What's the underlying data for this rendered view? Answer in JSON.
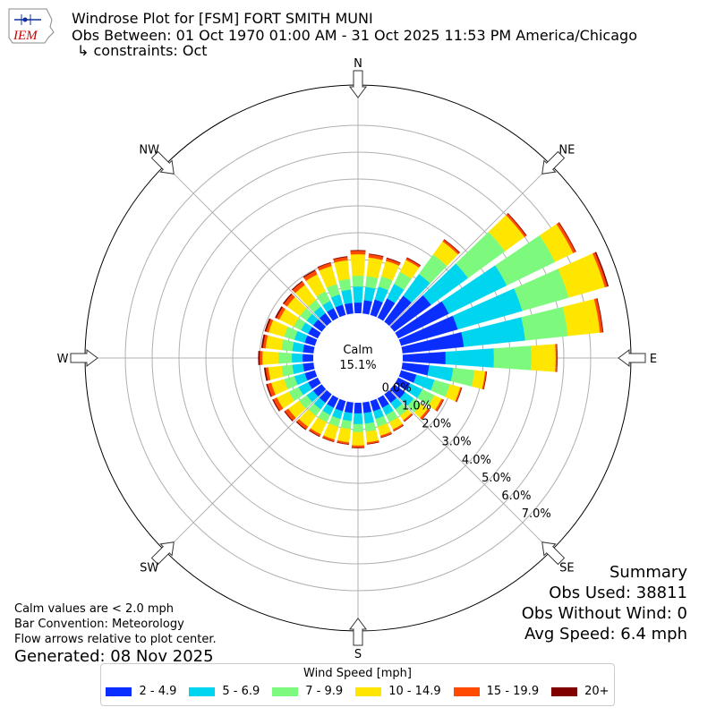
{
  "header": {
    "title": "Windrose Plot for [FSM] FORT SMITH MUNI",
    "obs_between": "Obs Between: 01 Oct 1970 01:00 AM - 31 Oct 2025 11:53 PM America/Chicago",
    "constraints": "↳ constraints: Oct"
  },
  "logo": {
    "text": "IEM",
    "color": "#cc0000"
  },
  "notes": {
    "calm_note": "Calm values are < 2.0 mph",
    "bar_convention": "Bar Convention: Meteorology",
    "flow_arrows": "Flow arrows relative to plot center.",
    "generated": "Generated: 08 Nov 2025"
  },
  "summary": {
    "heading": "Summary",
    "obs_used": "Obs Used: 38811",
    "obs_without_wind": "Obs Without Wind: 0",
    "avg_speed": "Avg Speed: 6.4 mph"
  },
  "legend": {
    "title": "Wind Speed [mph]",
    "items": [
      {
        "label": "2 - 4.9",
        "color": "#0a2eff"
      },
      {
        "label": "5 - 6.9",
        "color": "#00d5f0"
      },
      {
        "label": "7 - 9.9",
        "color": "#7dfa7d"
      },
      {
        "label": "10 - 14.9",
        "color": "#ffe600"
      },
      {
        "label": "15 - 19.9",
        "color": "#ff4a00"
      },
      {
        "label": "20+",
        "color": "#800000"
      }
    ]
  },
  "chart_data": {
    "type": "windrose",
    "calm_label": "Calm",
    "calm_percent": "15.1%",
    "calm_value": 15.1,
    "radial_ticks": [
      "0.0%",
      "1.0%",
      "2.0%",
      "3.0%",
      "4.0%",
      "5.0%",
      "6.0%",
      "7.0%"
    ],
    "cardinal_labels": [
      {
        "label": "N",
        "dir": 0
      },
      {
        "label": "NE",
        "dir": 45
      },
      {
        "label": "E",
        "dir": 90
      },
      {
        "label": "SE",
        "dir": 135
      },
      {
        "label": "S",
        "dir": 180
      },
      {
        "label": "SW",
        "dir": 225
      },
      {
        "label": "W",
        "dir": 270
      },
      {
        "label": "NW",
        "dir": 315
      }
    ],
    "bins": [
      "2 - 4.9",
      "5 - 6.9",
      "7 - 9.9",
      "10 - 14.9",
      "15 - 19.9",
      "20+"
    ],
    "sectors": [
      {
        "dir": 0,
        "values": [
          0.4,
          0.6,
          0.4,
          0.8,
          0.13,
          0.02
        ]
      },
      {
        "dir": 10,
        "values": [
          0.5,
          0.5,
          0.4,
          0.7,
          0.12,
          0.02
        ]
      },
      {
        "dir": 20,
        "values": [
          0.6,
          0.5,
          0.4,
          0.6,
          0.1,
          0.02
        ]
      },
      {
        "dir": 30,
        "values": [
          0.8,
          0.6,
          0.5,
          0.5,
          0.08,
          0.02
        ]
      },
      {
        "dir": 40,
        "values": [
          1.2,
          1.0,
          0.9,
          0.6,
          0.08,
          0.02
        ]
      },
      {
        "dir": 50,
        "values": [
          1.7,
          1.7,
          1.7,
          0.9,
          0.08,
          0.02
        ]
      },
      {
        "dir": 60,
        "values": [
          2.1,
          2.4,
          2.0,
          0.75,
          0.1,
          0.02
        ]
      },
      {
        "dir": 70,
        "values": [
          2.2,
          2.5,
          1.8,
          1.4,
          0.1,
          0.04
        ]
      },
      {
        "dir": 80,
        "values": [
          2.3,
          2.3,
          1.6,
          1.2,
          0.1,
          0.02
        ]
      },
      {
        "dir": 90,
        "values": [
          1.6,
          1.8,
          1.4,
          0.9,
          0.05,
          0.01
        ]
      },
      {
        "dir": 100,
        "values": [
          1.0,
          0.9,
          0.8,
          0.4,
          0.05,
          0.01
        ]
      },
      {
        "dir": 110,
        "values": [
          0.6,
          0.7,
          0.6,
          0.4,
          0.05,
          0.01
        ]
      },
      {
        "dir": 120,
        "values": [
          0.5,
          0.5,
          0.5,
          0.3,
          0.08,
          0.01
        ]
      },
      {
        "dir": 130,
        "values": [
          0.5,
          0.4,
          0.35,
          0.3,
          0.08,
          0.01
        ]
      },
      {
        "dir": 140,
        "values": [
          0.4,
          0.3,
          0.3,
          0.2,
          0.06,
          0.01
        ]
      },
      {
        "dir": 150,
        "values": [
          0.4,
          0.3,
          0.3,
          0.3,
          0.06,
          0.01
        ]
      },
      {
        "dir": 160,
        "values": [
          0.4,
          0.3,
          0.3,
          0.35,
          0.07,
          0.01
        ]
      },
      {
        "dir": 170,
        "values": [
          0.4,
          0.4,
          0.3,
          0.4,
          0.06,
          0.01
        ]
      },
      {
        "dir": 180,
        "values": [
          0.4,
          0.4,
          0.3,
          0.5,
          0.08,
          0.01
        ]
      },
      {
        "dir": 190,
        "values": [
          0.4,
          0.3,
          0.3,
          0.5,
          0.07,
          0.01
        ]
      },
      {
        "dir": 200,
        "values": [
          0.4,
          0.3,
          0.3,
          0.5,
          0.08,
          0.01
        ]
      },
      {
        "dir": 210,
        "values": [
          0.4,
          0.3,
          0.3,
          0.5,
          0.08,
          0.02
        ]
      },
      {
        "dir": 220,
        "values": [
          0.4,
          0.3,
          0.3,
          0.5,
          0.12,
          0.03
        ]
      },
      {
        "dir": 230,
        "values": [
          0.4,
          0.3,
          0.35,
          0.5,
          0.15,
          0.03
        ]
      },
      {
        "dir": 240,
        "values": [
          0.4,
          0.4,
          0.4,
          0.5,
          0.15,
          0.03
        ]
      },
      {
        "dir": 250,
        "values": [
          0.4,
          0.4,
          0.4,
          0.5,
          0.15,
          0.04
        ]
      },
      {
        "dir": 260,
        "values": [
          0.4,
          0.4,
          0.4,
          0.5,
          0.1,
          0.05
        ]
      },
      {
        "dir": 270,
        "values": [
          0.4,
          0.4,
          0.5,
          0.6,
          0.1,
          0.05
        ]
      },
      {
        "dir": 280,
        "values": [
          0.4,
          0.4,
          0.4,
          0.6,
          0.1,
          0.05
        ]
      },
      {
        "dir": 290,
        "values": [
          0.4,
          0.4,
          0.4,
          0.6,
          0.1,
          0.05
        ]
      },
      {
        "dir": 300,
        "values": [
          0.4,
          0.3,
          0.3,
          0.6,
          0.12,
          0.05
        ]
      },
      {
        "dir": 310,
        "values": [
          0.4,
          0.3,
          0.3,
          0.6,
          0.15,
          0.04
        ]
      },
      {
        "dir": 320,
        "values": [
          0.4,
          0.3,
          0.3,
          0.7,
          0.15,
          0.03
        ]
      },
      {
        "dir": 330,
        "values": [
          0.4,
          0.3,
          0.4,
          0.7,
          0.15,
          0.03
        ]
      },
      {
        "dir": 340,
        "values": [
          0.4,
          0.4,
          0.4,
          0.7,
          0.12,
          0.02
        ]
      },
      {
        "dir": 350,
        "values": [
          0.4,
          0.5,
          0.4,
          0.7,
          0.12,
          0.02
        ]
      }
    ]
  }
}
